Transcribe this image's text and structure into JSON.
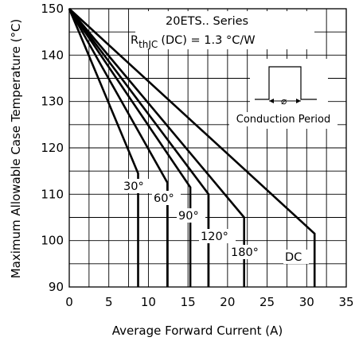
{
  "chart_data": {
    "type": "line",
    "xlabel": "Average Forward Current (A)",
    "ylabel": "Maximum Allowable Case Temperature (°C)",
    "xlim": [
      0,
      35
    ],
    "ylim": [
      90,
      150
    ],
    "x_ticks": [
      "0",
      "5",
      "10",
      "15",
      "20",
      "25",
      "30",
      "35"
    ],
    "y_ticks": [
      "90",
      "100",
      "110",
      "120",
      "130",
      "140",
      "150"
    ],
    "grid": true,
    "minor_x_step": 2.5,
    "minor_y_step": 5,
    "annotation": {
      "series_line": "20ETS.. Series",
      "rth_prefix": "R",
      "rth_sub": "thJC",
      "rth_value": "(DC) = 1.3 °C/W"
    },
    "inset": {
      "label": "Conduction Period"
    },
    "series": [
      {
        "name": "30°",
        "label": "30°",
        "points": [
          [
            0,
            150
          ],
          [
            8.7,
            114.5
          ]
        ],
        "drop_to": 90
      },
      {
        "name": "60°",
        "label": "60°",
        "points": [
          [
            0,
            150
          ],
          [
            12.4,
            112.5
          ]
        ],
        "drop_to": 90
      },
      {
        "name": "90°",
        "label": "90°",
        "points": [
          [
            0,
            150
          ],
          [
            15.3,
            111.5
          ]
        ],
        "drop_to": 90
      },
      {
        "name": "120°",
        "label": "120°",
        "points": [
          [
            0,
            150
          ],
          [
            17.6,
            110
          ]
        ],
        "drop_to": 90
      },
      {
        "name": "180°",
        "label": "180°",
        "points": [
          [
            0,
            150
          ],
          [
            22.1,
            105
          ]
        ],
        "drop_to": 90
      },
      {
        "name": "DC",
        "label": "DC",
        "points": [
          [
            0,
            150
          ],
          [
            31,
            101.5
          ]
        ],
        "drop_to": 90
      }
    ]
  }
}
